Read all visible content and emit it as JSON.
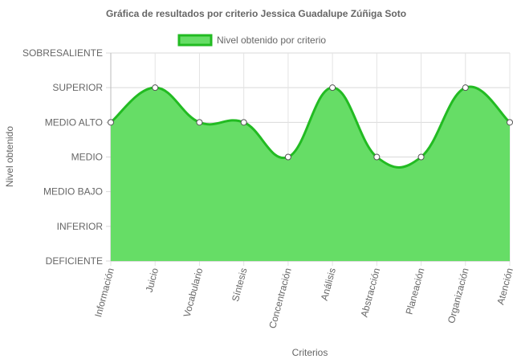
{
  "chart_data": {
    "type": "area",
    "title": "Gráfica de resultados por criterio Jessica Guadalupe Zúñiga Soto",
    "xlabel": "Criterios",
    "ylabel": "Nivel obtenido",
    "y_levels": [
      "DEFICIENTE",
      "INFERIOR",
      "MEDIO BAJO",
      "MEDIO",
      "MEDIO ALTO",
      "SUPERIOR",
      "SOBRESALIENTE"
    ],
    "ylim": [
      0,
      6
    ],
    "categories": [
      "Información",
      "Juicio",
      "Vocabulario",
      "Síntesis",
      "Concentración",
      "Análisis",
      "Abstracción",
      "Planeación",
      "Organización",
      "Atención"
    ],
    "series": [
      {
        "name": "Nivel obtenido por criterio",
        "values": [
          4,
          5,
          4,
          4,
          3,
          5,
          3,
          3,
          5,
          4
        ],
        "fill_color": "#66dd66",
        "line_color": "#22bb22"
      }
    ],
    "legend_position": "top",
    "grid": true
  }
}
